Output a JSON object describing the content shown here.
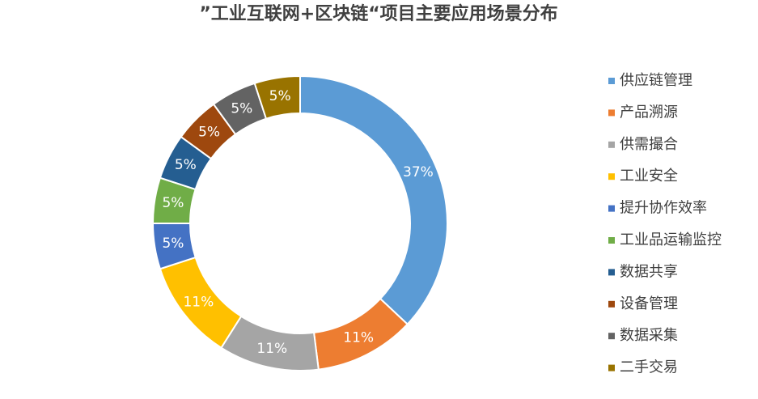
{
  "chart_data": {
    "type": "donut",
    "title": "”工业互联网+区块链“项目主要应用场景分布",
    "categories": [
      "供应链管理",
      "产品溯源",
      "供需撮合",
      "工业安全",
      "提升协作效率",
      "工业品运输监控",
      "数据共享",
      "设备管理",
      "数据采集",
      "二手交易"
    ],
    "values": [
      37,
      11,
      11,
      11,
      5,
      5,
      5,
      5,
      5,
      5
    ],
    "value_labels": [
      "37%",
      "11%",
      "11%",
      "11%",
      "5%",
      "5%",
      "5%",
      "5%",
      "5%",
      "5%"
    ],
    "colors": [
      "#5b9bd5",
      "#ed7d31",
      "#a5a5a5",
      "#ffc000",
      "#4472c4",
      "#70ad47",
      "#255e91",
      "#9e480e",
      "#636363",
      "#997300"
    ],
    "legend": "right"
  }
}
